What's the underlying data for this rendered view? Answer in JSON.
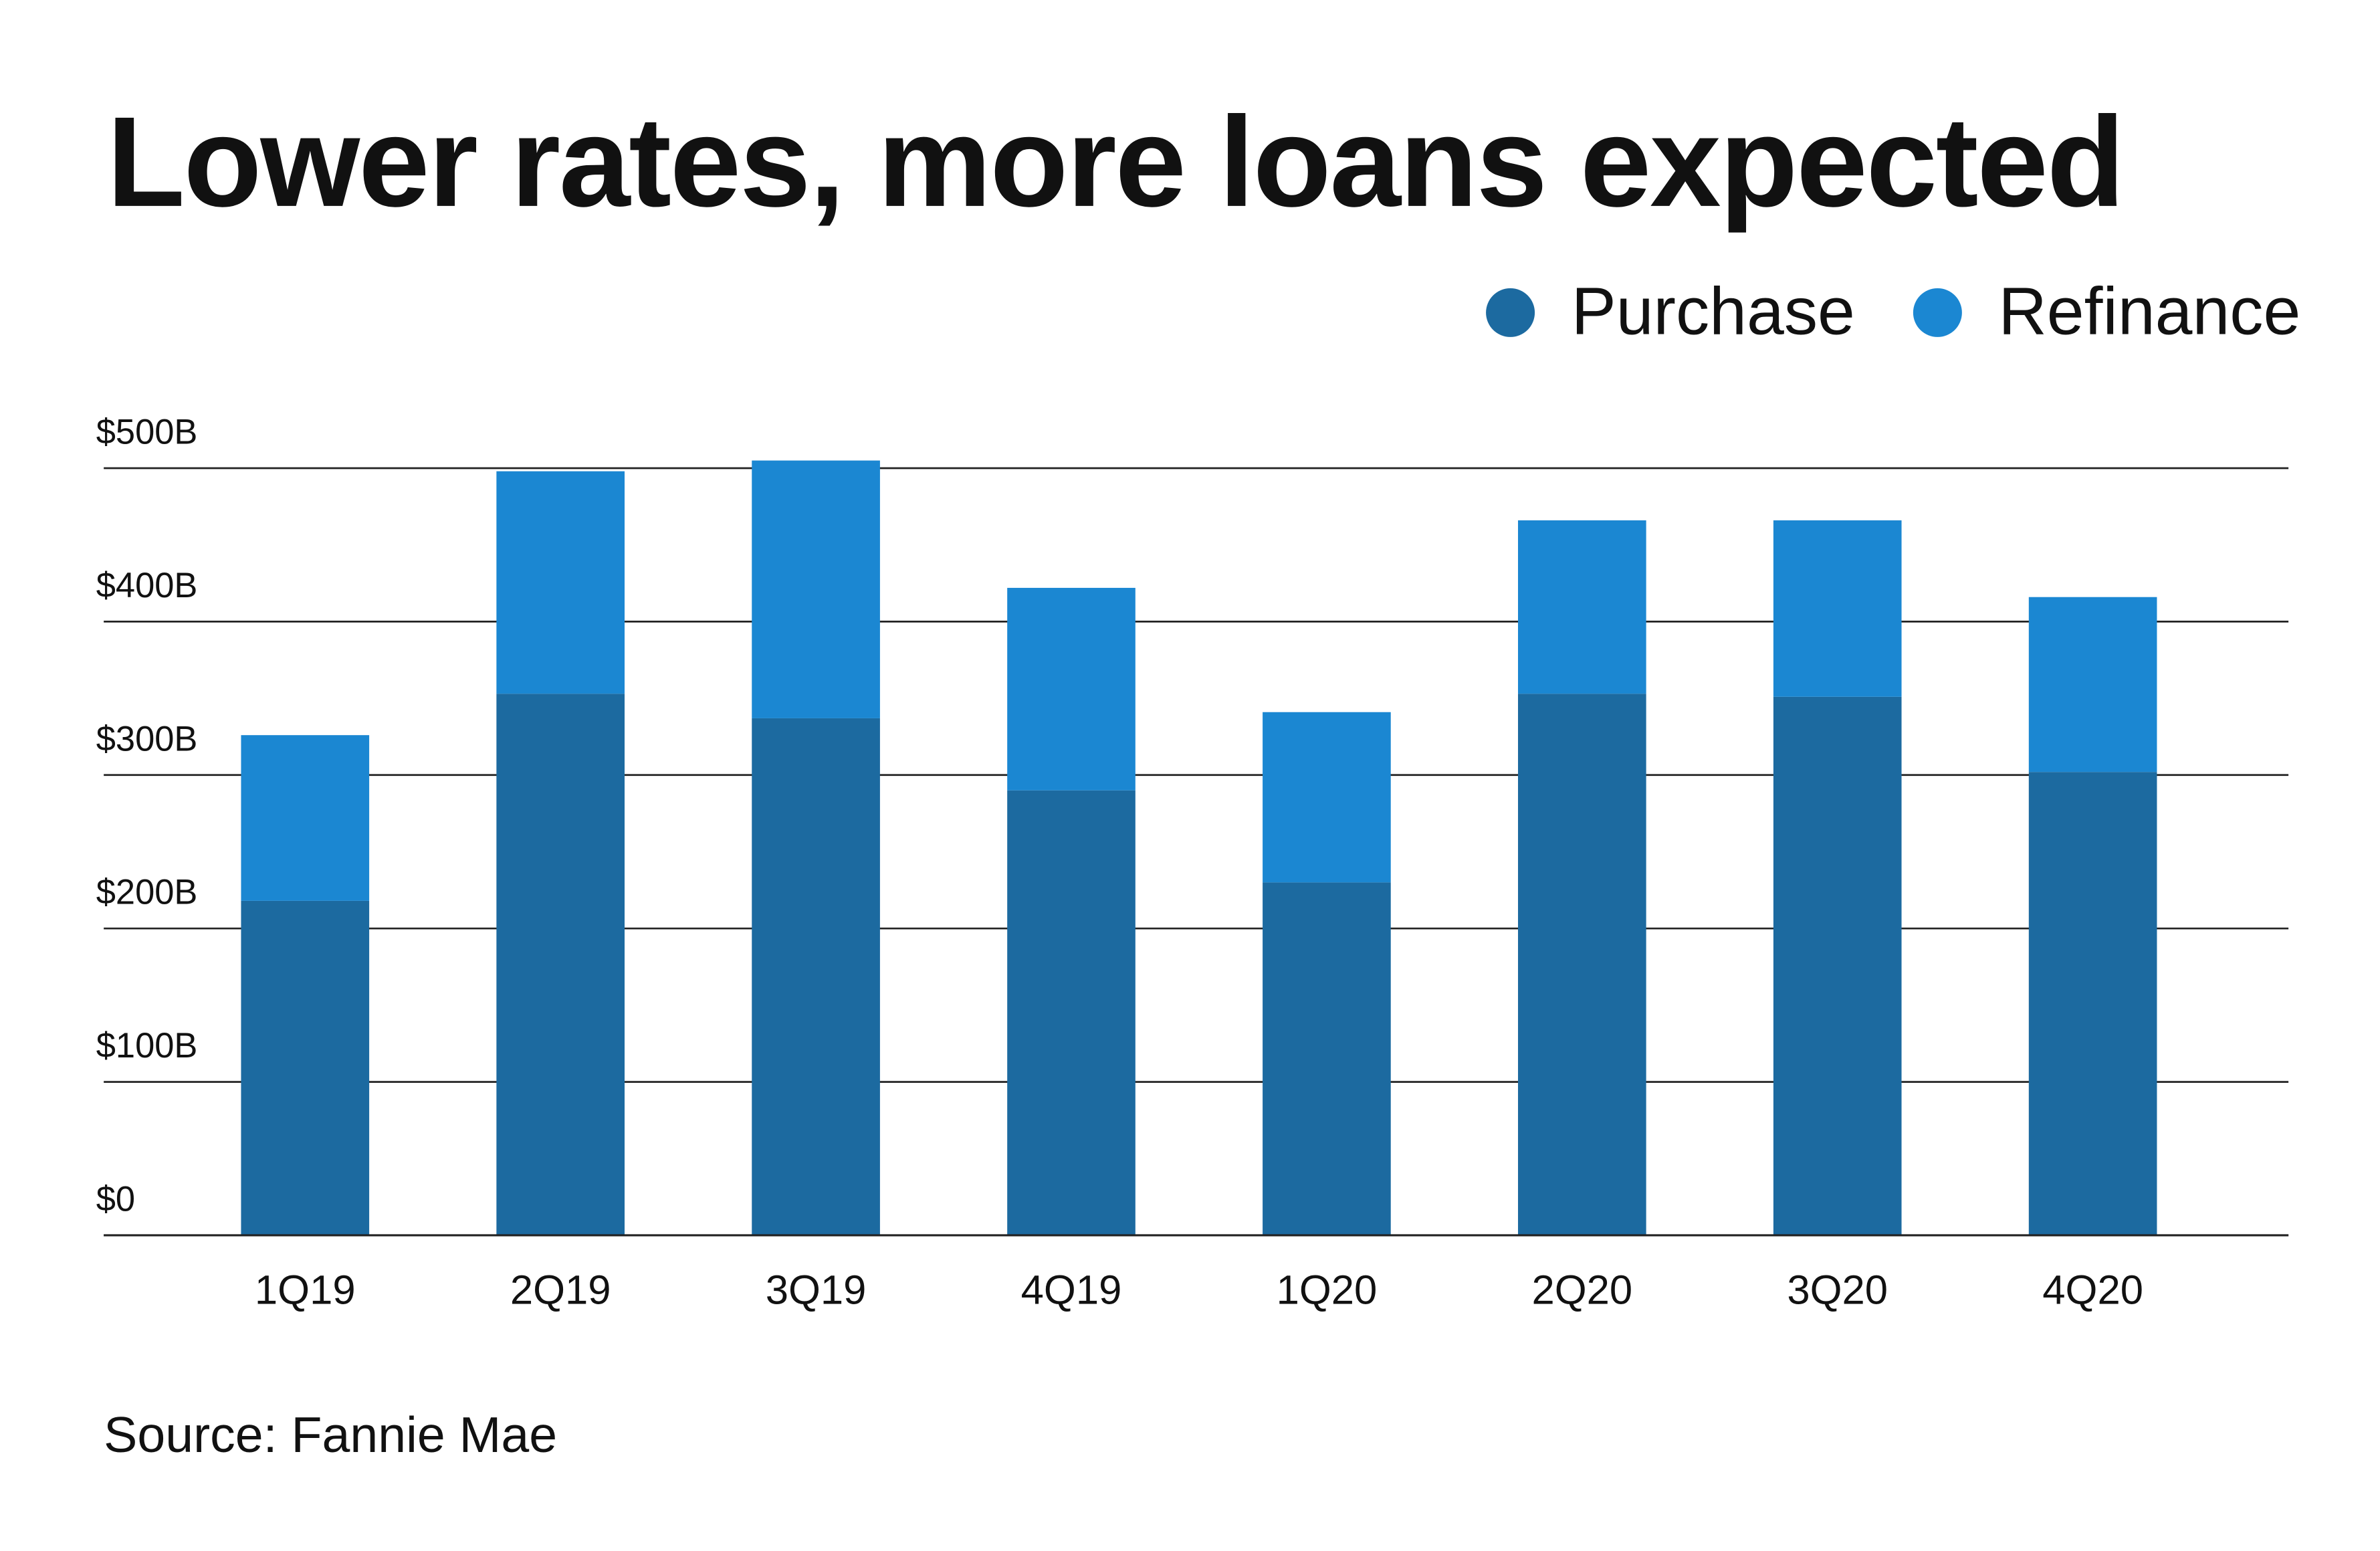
{
  "chart_data": {
    "type": "bar",
    "stacked": true,
    "title": "Lower rates, more loans expected",
    "categories": [
      "1Q19",
      "2Q19",
      "3Q19",
      "4Q19",
      "1Q20",
      "2Q20",
      "3Q20",
      "4Q20"
    ],
    "series": [
      {
        "name": "Purchase",
        "color": "#1c6aa0",
        "values": [
          218,
          353,
          337,
          290,
          230,
          353,
          351,
          302
        ]
      },
      {
        "name": "Refinance",
        "color": "#1b87d2",
        "values": [
          108,
          145,
          168,
          132,
          111,
          113,
          115,
          114
        ]
      }
    ],
    "ylim": [
      0,
      500
    ],
    "yticks": [
      0,
      100,
      200,
      300,
      400,
      500
    ],
    "ytick_labels": [
      "$0",
      "$100B",
      "$200B",
      "$300B",
      "$400B",
      "$500B"
    ],
    "xlabel": "",
    "ylabel": "",
    "grid": true,
    "legend_position": "top-right",
    "source": "Source: Fannie Mae"
  }
}
